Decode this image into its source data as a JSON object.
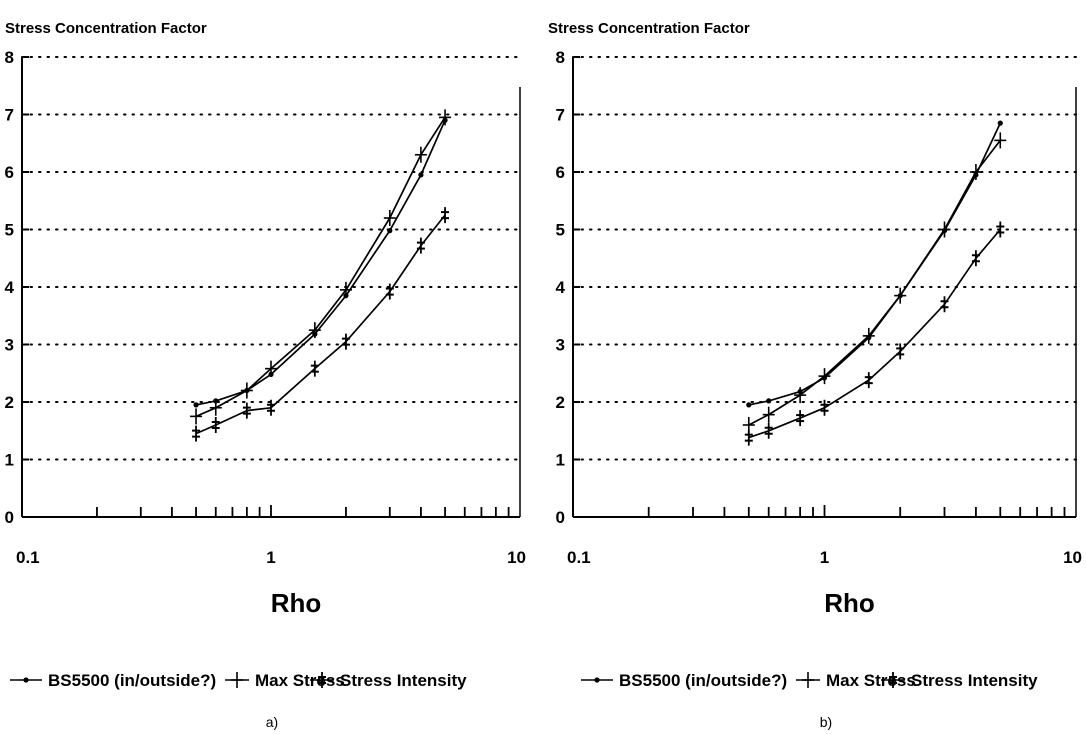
{
  "chart_data": [
    {
      "type": "line",
      "panel_label": "a)",
      "title": "",
      "ylabel": "Stress Concentration Factor",
      "xlabel": "Rho",
      "xscale": "log",
      "xlim": [
        0.1,
        10
      ],
      "ylim": [
        0,
        8
      ],
      "x_tick_labels": [
        "0.1",
        "1",
        "10"
      ],
      "y_tick_labels": [
        "0",
        "1",
        "2",
        "3",
        "4",
        "5",
        "6",
        "7",
        "8"
      ],
      "grid": "horizontal dotted",
      "legend_position": "bottom",
      "series": [
        {
          "name": "BS5500 (in/outside?)",
          "marker": "dot",
          "x": [
            0.5,
            0.6,
            0.8,
            1.0,
            1.5,
            2.0,
            3.0,
            4.0,
            5.0
          ],
          "y": [
            1.95,
            2.02,
            2.2,
            2.48,
            3.18,
            3.85,
            4.98,
            5.95,
            6.9
          ]
        },
        {
          "name": "Max Stress",
          "marker": "plus",
          "x": [
            0.5,
            0.6,
            0.8,
            1.0,
            1.5,
            2.0,
            3.0,
            4.0,
            5.0
          ],
          "y": [
            1.75,
            1.9,
            2.2,
            2.58,
            3.25,
            3.95,
            5.2,
            6.3,
            6.95
          ]
        },
        {
          "name": "Stress Intensity",
          "marker": "double-star",
          "x": [
            0.5,
            0.6,
            0.8,
            1.0,
            1.5,
            2.0,
            3.0,
            4.0,
            5.0
          ],
          "y": [
            1.45,
            1.6,
            1.85,
            1.9,
            2.58,
            3.05,
            3.92,
            4.72,
            5.25
          ]
        }
      ]
    },
    {
      "type": "line",
      "panel_label": "b)",
      "title": "",
      "ylabel": "Stress Concentration Factor",
      "xlabel": "Rho",
      "xscale": "log",
      "xlim": [
        0.1,
        10
      ],
      "ylim": [
        0,
        8
      ],
      "x_tick_labels": [
        "0.1",
        "1",
        "10"
      ],
      "y_tick_labels": [
        "0",
        "1",
        "2",
        "3",
        "4",
        "5",
        "6",
        "7",
        "8"
      ],
      "grid": "horizontal dotted",
      "legend_position": "bottom",
      "series": [
        {
          "name": "BS5500 (in/outside?)",
          "marker": "dot",
          "x": [
            0.5,
            0.6,
            0.8,
            1.0,
            1.5,
            2.0,
            3.0,
            4.0,
            5.0
          ],
          "y": [
            1.95,
            2.02,
            2.18,
            2.42,
            3.12,
            3.85,
            4.98,
            5.95,
            6.85
          ]
        },
        {
          "name": "Max Stress",
          "marker": "plus",
          "x": [
            0.5,
            0.6,
            0.8,
            1.0,
            1.5,
            2.0,
            3.0,
            4.0,
            5.0
          ],
          "y": [
            1.6,
            1.78,
            2.12,
            2.45,
            3.15,
            3.85,
            5.0,
            6.0,
            6.55
          ]
        },
        {
          "name": "Stress Intensity",
          "marker": "double-star",
          "x": [
            0.5,
            0.6,
            0.8,
            1.0,
            1.5,
            2.0,
            3.0,
            4.0,
            5.0
          ],
          "y": [
            1.38,
            1.5,
            1.72,
            1.9,
            2.38,
            2.88,
            3.7,
            4.5,
            5.0
          ]
        }
      ]
    }
  ]
}
